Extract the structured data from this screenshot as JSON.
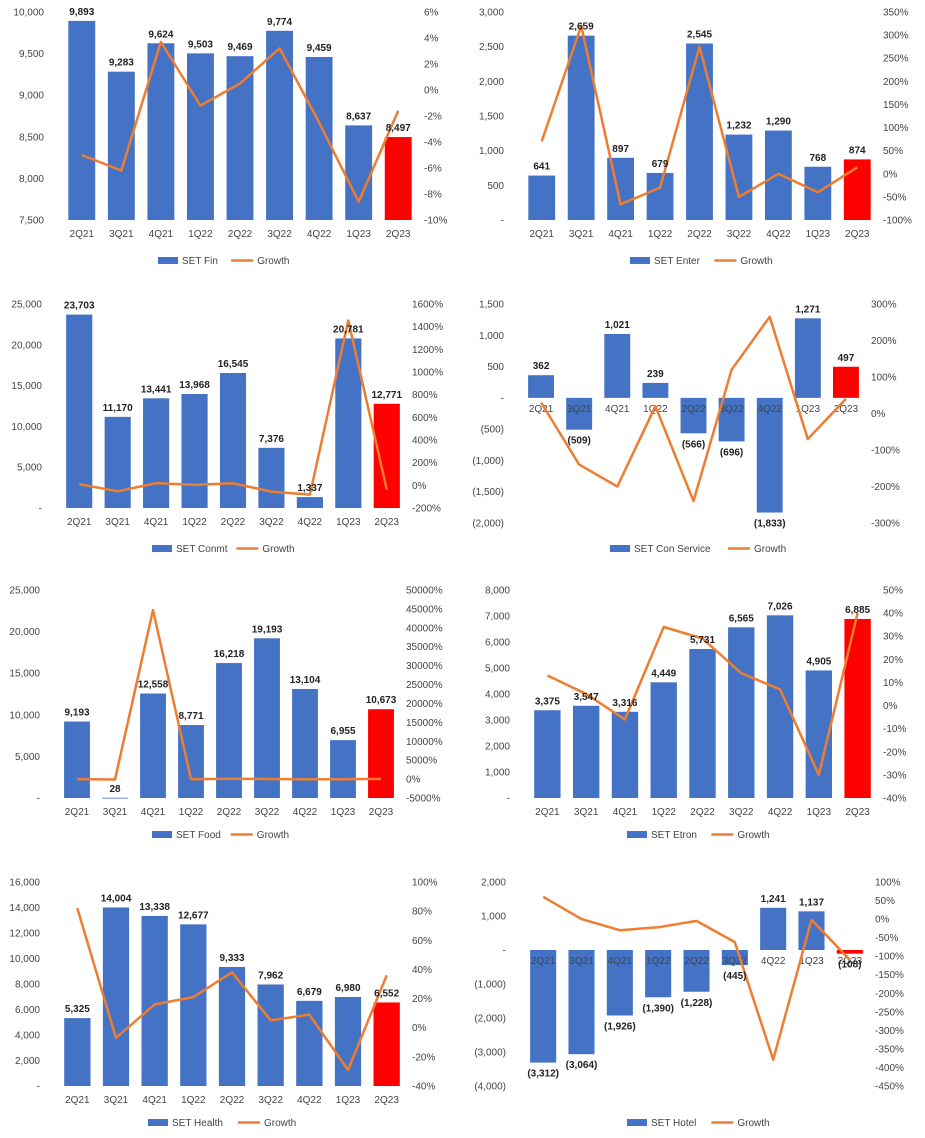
{
  "chart_data": [
    {
      "type": "bar",
      "categories": [
        "2Q21",
        "3Q21",
        "4Q21",
        "1Q22",
        "2Q22",
        "3Q22",
        "4Q22",
        "1Q23",
        "2Q23"
      ],
      "series": [
        {
          "name": "SET Fin",
          "values": [
            9893,
            9283,
            9624,
            9503,
            9469,
            9774,
            9459,
            8637,
            8497
          ],
          "labels": [
            "9,893",
            "9,283",
            "9,624",
            "9,503",
            "9,469",
            "9,774",
            "9,459",
            "8,637",
            "8,497"
          ]
        },
        {
          "name": "Growth",
          "type": "line",
          "axis": "right",
          "values": [
            -5.0,
            -6.2,
            3.7,
            -1.2,
            0.5,
            3.2,
            -2.5,
            -8.6,
            -1.6
          ]
        }
      ],
      "ylim": [
        7500,
        10000
      ],
      "yticks": [
        "7,500",
        "8,000",
        "8,500",
        "9,000",
        "9,500",
        "10,000"
      ],
      "y2lim": [
        -10,
        6
      ],
      "y2ticks": [
        "-10%",
        "-8%",
        "-6%",
        "-4%",
        "-2%",
        "0%",
        "2%",
        "4%",
        "6%"
      ],
      "colors": {
        "bar": "#4472C4",
        "highlight": "#FF0000",
        "line": "#ED7D31"
      }
    },
    {
      "type": "bar",
      "categories": [
        "2Q21",
        "3Q21",
        "4Q21",
        "1Q22",
        "2Q22",
        "3Q22",
        "4Q22",
        "1Q23",
        "2Q23"
      ],
      "series": [
        {
          "name": "SET Enter",
          "values": [
            641,
            2659,
            897,
            679,
            2545,
            1232,
            1290,
            768,
            874
          ],
          "labels": [
            "641",
            "2,659",
            "897",
            "679",
            "2,545",
            "1,232",
            "1,290",
            "768",
            "874"
          ]
        },
        {
          "name": "Growth",
          "type": "line",
          "axis": "right",
          "values": [
            70,
            320,
            -66,
            -30,
            275,
            -50,
            0,
            -40,
            14
          ]
        }
      ],
      "ylim": [
        0,
        3000
      ],
      "yticks": [
        "-",
        "500",
        "1,000",
        "1,500",
        "2,000",
        "2,500",
        "3,000"
      ],
      "y2lim": [
        -100,
        350
      ],
      "y2ticks": [
        "-100%",
        "-50%",
        "0%",
        "50%",
        "100%",
        "150%",
        "200%",
        "250%",
        "300%",
        "350%"
      ],
      "colors": {
        "bar": "#4472C4",
        "highlight": "#FF0000",
        "line": "#ED7D31"
      }
    },
    {
      "type": "bar",
      "categories": [
        "2Q21",
        "3Q21",
        "4Q21",
        "1Q22",
        "2Q22",
        "3Q22",
        "4Q22",
        "1Q23",
        "2Q23"
      ],
      "series": [
        {
          "name": "SET Conmt",
          "values": [
            23703,
            11170,
            13441,
            13968,
            16545,
            7376,
            1337,
            20781,
            12771
          ],
          "labels": [
            "23,703",
            "11,170",
            "13,441",
            "13,968",
            "16,545",
            "7,376",
            "1,337",
            "20,781",
            "12,771"
          ]
        },
        {
          "name": "Growth",
          "type": "line",
          "axis": "right",
          "values": [
            10,
            -53,
            20,
            4,
            18,
            -55,
            -82,
            1454,
            -39
          ]
        }
      ],
      "ylim": [
        0,
        25000
      ],
      "yticks": [
        "-",
        "5,000",
        "10,000",
        "15,000",
        "20,000",
        "25,000"
      ],
      "y2lim": [
        -200,
        1600
      ],
      "y2ticks": [
        "-200%",
        "0%",
        "200%",
        "400%",
        "600%",
        "800%",
        "1000%",
        "1200%",
        "1400%",
        "1600%"
      ],
      "colors": {
        "bar": "#4472C4",
        "highlight": "#FF0000",
        "line": "#ED7D31"
      }
    },
    {
      "type": "bar",
      "categories": [
        "2Q21",
        "3Q21",
        "4Q21",
        "1Q22",
        "2Q22",
        "3Q22",
        "4Q22",
        "1Q23",
        "2Q23"
      ],
      "series": [
        {
          "name": "SET Con Service",
          "values": [
            362,
            -509,
            1021,
            239,
            -566,
            -696,
            -1833,
            1271,
            497
          ],
          "labels": [
            "362",
            "(509)",
            "1,021",
            "239",
            "(566)",
            "(696)",
            "(1,833)",
            "1,271",
            "497"
          ]
        },
        {
          "name": "Growth",
          "type": "line",
          "axis": "right",
          "values": [
            30,
            -140,
            -200,
            20,
            -240,
            120,
            265,
            -70,
            40
          ]
        }
      ],
      "ylim": [
        -2000,
        1500
      ],
      "yticks": [
        "(2,000)",
        "(1,500)",
        "(1,000)",
        "(500)",
        "-",
        "500",
        "1,000",
        "1,500"
      ],
      "y2lim": [
        -300,
        300
      ],
      "y2ticks": [
        "-300%",
        "-200%",
        "-100%",
        "0%",
        "100%",
        "200%",
        "300%"
      ],
      "colors": {
        "bar": "#4472C4",
        "highlight": "#FF0000",
        "line": "#ED7D31"
      }
    },
    {
      "type": "bar",
      "categories": [
        "2Q21",
        "3Q21",
        "4Q21",
        "1Q22",
        "2Q22",
        "3Q22",
        "4Q22",
        "1Q23",
        "2Q23"
      ],
      "series": [
        {
          "name": "SET Food",
          "values": [
            9193,
            28,
            12558,
            8771,
            16218,
            19193,
            13104,
            6955,
            10673
          ],
          "labels": [
            "9,193",
            "28",
            "12,558",
            "8,771",
            "16,218",
            "19,193",
            "13,104",
            "6,955",
            "10,673"
          ]
        },
        {
          "name": "Growth",
          "type": "line",
          "axis": "right",
          "values": [
            0,
            -100,
            44700,
            -30,
            85,
            18,
            -32,
            -47,
            53
          ]
        }
      ],
      "ylim": [
        0,
        25000
      ],
      "yticks": [
        "-",
        "5,000",
        "10,000",
        "15,000",
        "20,000",
        "25,000"
      ],
      "y2lim": [
        -5000,
        50000
      ],
      "y2ticks": [
        "-5000%",
        "0%",
        "5000%",
        "10000%",
        "15000%",
        "20000%",
        "25000%",
        "30000%",
        "35000%",
        "40000%",
        "45000%",
        "50000%"
      ],
      "colors": {
        "bar": "#4472C4",
        "highlight": "#FF0000",
        "line": "#ED7D31"
      }
    },
    {
      "type": "bar",
      "categories": [
        "2Q21",
        "3Q21",
        "4Q21",
        "1Q22",
        "2Q22",
        "3Q22",
        "4Q22",
        "1Q23",
        "2Q23"
      ],
      "series": [
        {
          "name": "SET Etron",
          "values": [
            3375,
            3547,
            3316,
            4449,
            5731,
            6565,
            7026,
            4905,
            6885
          ],
          "labels": [
            "3,375",
            "3,547",
            "3,316",
            "4,449",
            "5,731",
            "6,565",
            "7,026",
            "4,905",
            "6,885"
          ]
        },
        {
          "name": "Growth",
          "type": "line",
          "axis": "right",
          "values": [
            13,
            5,
            -6,
            34,
            29,
            14,
            7,
            -30,
            40
          ]
        }
      ],
      "ylim": [
        0,
        8000
      ],
      "yticks": [
        "-",
        "1,000",
        "2,000",
        "3,000",
        "4,000",
        "5,000",
        "6,000",
        "7,000",
        "8,000"
      ],
      "y2lim": [
        -40,
        50
      ],
      "y2ticks": [
        "-40%",
        "-30%",
        "-20%",
        "-10%",
        "0%",
        "10%",
        "20%",
        "30%",
        "40%",
        "50%"
      ],
      "colors": {
        "bar": "#4472C4",
        "highlight": "#FF0000",
        "line": "#ED7D31"
      }
    },
    {
      "type": "bar",
      "categories": [
        "2Q21",
        "3Q21",
        "4Q21",
        "1Q22",
        "2Q22",
        "3Q22",
        "4Q22",
        "1Q23",
        "2Q23"
      ],
      "series": [
        {
          "name": "SET Health",
          "values": [
            5325,
            14004,
            13338,
            12677,
            9333,
            7962,
            6679,
            6980,
            6552
          ],
          "labels": [
            "5,325",
            "14,004",
            "13,338",
            "12,677",
            "9,333",
            "7,962",
            "6,679",
            "6,980",
            "6,552"
          ]
        },
        {
          "name": "Growth",
          "type": "line",
          "axis": "right",
          "values": [
            82,
            -7,
            16,
            21,
            38,
            5,
            9,
            -29,
            36
          ]
        }
      ],
      "ylim": [
        0,
        16000
      ],
      "yticks": [
        "-",
        "2,000",
        "4,000",
        "6,000",
        "8,000",
        "10,000",
        "12,000",
        "14,000",
        "16,000"
      ],
      "y2lim": [
        -40,
        100
      ],
      "y2ticks": [
        "-40%",
        "-20%",
        "0%",
        "20%",
        "40%",
        "60%",
        "80%",
        "100%"
      ],
      "colors": {
        "bar": "#4472C4",
        "highlight": "#FF0000",
        "line": "#ED7D31"
      }
    },
    {
      "type": "bar",
      "categories": [
        "2Q21",
        "3Q21",
        "4Q21",
        "1Q22",
        "2Q22",
        "3Q22",
        "4Q22",
        "1Q23",
        "2Q23"
      ],
      "series": [
        {
          "name": "SET Hotel",
          "values": [
            -3312,
            -3064,
            -1926,
            -1390,
            -1228,
            -445,
            1241,
            1137,
            -108
          ],
          "labels": [
            "(3,312)",
            "(3,064)",
            "(1,926)",
            "(1,390)",
            "(1,228)",
            "(445)",
            "1,241",
            "1,137",
            "(108)"
          ]
        },
        {
          "name": "Growth",
          "type": "line",
          "axis": "right",
          "values": [
            60,
            0,
            -30,
            -22,
            -5,
            -62,
            -379,
            -2,
            -110
          ]
        }
      ],
      "ylim": [
        -4000,
        2000
      ],
      "yticks": [
        "(4,000)",
        "(3,000)",
        "(2,000)",
        "(1,000)",
        "-",
        "1,000",
        "2,000"
      ],
      "y2lim": [
        -450,
        100
      ],
      "y2ticks": [
        "-450%",
        "-400%",
        "-350%",
        "-300%",
        "-250%",
        "-200%",
        "-150%",
        "-100%",
        "-50%",
        "0%",
        "50%",
        "100%"
      ],
      "colors": {
        "bar": "#4472C4",
        "highlight": "#FF0000",
        "line": "#ED7D31"
      }
    }
  ]
}
